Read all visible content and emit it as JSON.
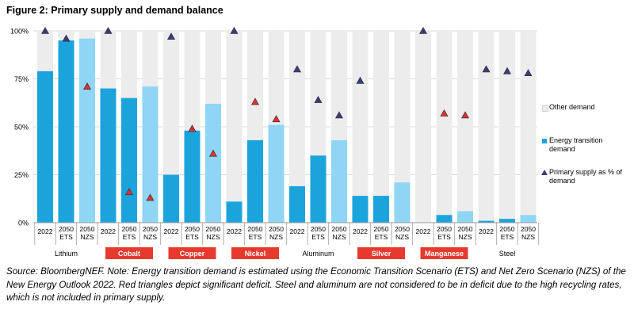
{
  "figure_title": "Figure 2: Primary supply and demand balance",
  "source_note": "Source: BloombergNEF. Note: Energy transition demand is estimated using the Economic Transition Scenario (ETS) and Net Zero Scenario (NZS) of the New Energy Outlook 2022. Red triangles depict significant deficit. Steel and aluminum are not considered to be in deficit due to the high recycling rates, which is not included in primary supply.",
  "colors": {
    "other": "#ececec",
    "et_2022": "#1ba3dc",
    "et_ets": "#1ba3dc",
    "et_nzs": "#8fd6f4",
    "tri_normal": "#3c3c74",
    "tri_deficit": "#e0302a",
    "deficit_label_bg": "#e63a2e"
  },
  "legend": [
    {
      "key": "other",
      "label": "Other demand",
      "swatch": "#ececec"
    },
    {
      "key": "et",
      "label": "Energy transition demand",
      "swatch": "#1ba3dc"
    },
    {
      "key": "supply",
      "label": "Primary supply as % of demand",
      "swatch": "#3c3c74"
    }
  ],
  "chart_data": {
    "type": "bar",
    "stacked": true,
    "ylim": [
      0,
      100
    ],
    "yticks": [
      "0%",
      "25%",
      "50%",
      "75%",
      "100%"
    ],
    "scenarios": [
      "2022",
      "2050 ETS",
      "2050 NZS"
    ],
    "groups": [
      {
        "name": "Lithium",
        "deficit": false,
        "energy_transition": [
          79,
          95,
          96
        ],
        "supply": [
          100,
          96,
          71
        ],
        "deficit_markers": [
          false,
          false,
          true
        ]
      },
      {
        "name": "Cobalt",
        "deficit": true,
        "energy_transition": [
          70,
          65,
          71
        ],
        "supply": [
          100,
          16,
          13
        ],
        "deficit_markers": [
          false,
          true,
          true
        ]
      },
      {
        "name": "Copper",
        "deficit": true,
        "energy_transition": [
          25,
          48,
          62
        ],
        "supply": [
          97,
          49,
          36
        ],
        "deficit_markers": [
          false,
          true,
          true
        ]
      },
      {
        "name": "Nickel",
        "deficit": true,
        "energy_transition": [
          11,
          43,
          51
        ],
        "supply": [
          100,
          63,
          54
        ],
        "deficit_markers": [
          false,
          true,
          true
        ]
      },
      {
        "name": "Aluminum",
        "deficit": false,
        "energy_transition": [
          19,
          35,
          43
        ],
        "supply": [
          80,
          64,
          56
        ],
        "deficit_markers": [
          false,
          false,
          false
        ]
      },
      {
        "name": "Silver",
        "deficit": true,
        "energy_transition": [
          14,
          14,
          21
        ],
        "supply": [
          74,
          null,
          null
        ],
        "deficit_markers": [
          false,
          false,
          false
        ]
      },
      {
        "name": "Manganese",
        "deficit": true,
        "energy_transition": [
          0,
          4,
          6
        ],
        "supply": [
          100,
          57,
          56
        ],
        "deficit_markers": [
          false,
          true,
          true
        ]
      },
      {
        "name": "Steel",
        "deficit": false,
        "energy_transition": [
          1,
          2,
          4
        ],
        "supply": [
          80,
          79,
          78
        ],
        "deficit_markers": [
          false,
          false,
          false
        ]
      }
    ],
    "series": [
      {
        "name": "Other demand"
      },
      {
        "name": "Energy transition demand"
      },
      {
        "name": "Primary supply as % of demand"
      }
    ]
  }
}
